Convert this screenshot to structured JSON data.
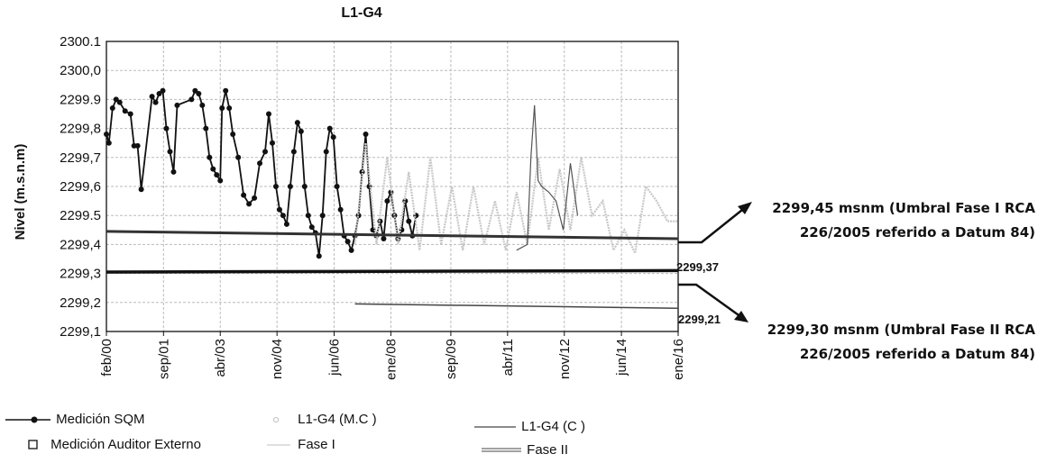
{
  "chart_data": {
    "type": "line",
    "title": "L1-G4",
    "xlabel": "",
    "ylabel": "Nivel (m.s.n.m)",
    "y_tick_labels": [
      "2300.1",
      "2300,0",
      "2299.9",
      "2299,8",
      "2299,7",
      "2299,6",
      "2299.5",
      "2299,4",
      "2299,3",
      "2299,2",
      "2299,1"
    ],
    "y_tick_values": [
      2300.1,
      2300.0,
      2299.9,
      2299.8,
      2299.7,
      2299.6,
      2299.5,
      2299.4,
      2299.3,
      2299.2,
      2299.1
    ],
    "ylim": [
      2299.1,
      2300.1
    ],
    "x_tick_labels": [
      "feb/00",
      "sep/01",
      "abr/03",
      "nov/04",
      "jun/06",
      "ene/08",
      "sep/09",
      "abr/11",
      "nov/12",
      "jun/14",
      "ene/16"
    ],
    "x_tick_values": [
      2000.08,
      2001.67,
      2003.25,
      2004.83,
      2006.42,
      2008.0,
      2009.67,
      2011.25,
      2012.83,
      2014.42,
      2016.0
    ],
    "xlim": [
      2000.08,
      2016.0
    ],
    "grid": true,
    "legend_position": "bottom",
    "series": [
      {
        "name": "Medición SQM",
        "color": "#111111",
        "x": [
          2000.08,
          2000.15,
          2000.25,
          2000.35,
          2000.45,
          2000.6,
          2000.75,
          2000.85,
          2000.95,
          2001.05,
          2001.35,
          2001.45,
          2001.55,
          2001.65,
          2001.75,
          2001.85,
          2001.95,
          2002.05,
          2002.45,
          2002.55,
          2002.65,
          2002.75,
          2002.85,
          2002.95,
          2003.05,
          2003.15,
          2003.25,
          2003.3,
          2003.4,
          2003.5,
          2003.6,
          2003.75,
          2003.9,
          2004.05,
          2004.2,
          2004.35,
          2004.5,
          2004.6,
          2004.7,
          2004.8,
          2004.9,
          2005.0,
          2005.1,
          2005.2,
          2005.3,
          2005.4,
          2005.5,
          2005.6,
          2005.7,
          2005.8,
          2005.9,
          2006.0,
          2006.1,
          2006.2,
          2006.3,
          2006.4,
          2006.5,
          2006.6,
          2006.7,
          2006.8,
          2006.9,
          2007.0,
          2007.1,
          2007.2,
          2007.3,
          2007.4,
          2007.5,
          2007.6,
          2007.7,
          2007.8,
          2007.9,
          2008.0,
          2008.1,
          2008.2,
          2008.3,
          2008.4,
          2008.5,
          2008.6,
          2008.7
        ],
        "y": [
          2299.78,
          2299.75,
          2299.87,
          2299.9,
          2299.89,
          2299.86,
          2299.85,
          2299.74,
          2299.74,
          2299.59,
          2299.91,
          2299.89,
          2299.92,
          2299.93,
          2299.8,
          2299.72,
          2299.65,
          2299.88,
          2299.9,
          2299.93,
          2299.92,
          2299.88,
          2299.8,
          2299.7,
          2299.66,
          2299.64,
          2299.62,
          2299.87,
          2299.93,
          2299.87,
          2299.78,
          2299.7,
          2299.57,
          2299.54,
          2299.56,
          2299.68,
          2299.72,
          2299.85,
          2299.75,
          2299.6,
          2299.52,
          2299.5,
          2299.47,
          2299.6,
          2299.72,
          2299.82,
          2299.79,
          2299.6,
          2299.5,
          2299.46,
          2299.44,
          2299.36,
          2299.5,
          2299.72,
          2299.8,
          2299.77,
          2299.6,
          2299.52,
          2299.43,
          2299.41,
          2299.38,
          2299.43,
          2299.5,
          2299.65,
          2299.78,
          2299.6,
          2299.45,
          2299.43,
          2299.48,
          2299.42,
          2299.55,
          2299.58,
          2299.5,
          2299.42,
          2299.45,
          2299.55,
          2299.48,
          2299.43,
          2299.5
        ]
      },
      {
        "name": "L1-G4 (M.C )",
        "color": "#c8c8c8",
        "x": [
          2007.0,
          2007.3,
          2007.6,
          2007.9,
          2008.2,
          2008.5,
          2008.8,
          2009.1,
          2009.4,
          2009.7,
          2010.0,
          2010.3,
          2010.6,
          2010.9,
          2011.2,
          2011.5,
          2011.8,
          2012.1,
          2012.4,
          2012.7,
          2013.0,
          2013.3,
          2013.6,
          2013.9,
          2014.2,
          2014.5,
          2014.8,
          2015.1,
          2015.4,
          2015.7,
          2016.0
        ],
        "y": [
          2299.4,
          2299.75,
          2299.4,
          2299.7,
          2299.4,
          2299.65,
          2299.38,
          2299.7,
          2299.4,
          2299.6,
          2299.38,
          2299.6,
          2299.4,
          2299.55,
          2299.38,
          2299.58,
          2299.4,
          2299.7,
          2299.45,
          2299.66,
          2299.45,
          2299.7,
          2299.5,
          2299.55,
          2299.38,
          2299.45,
          2299.37,
          2299.6,
          2299.55,
          2299.48,
          2299.48
        ]
      },
      {
        "name": "L1-G4 (C )",
        "color": "#555555",
        "x": [
          2011.5,
          2011.8,
          2011.9,
          2012.0,
          2012.1,
          2012.2,
          2012.4,
          2012.6,
          2012.8,
          2013.0,
          2013.2
        ],
        "y": [
          2299.38,
          2299.4,
          2299.7,
          2299.88,
          2299.62,
          2299.6,
          2299.58,
          2299.55,
          2299.45,
          2299.68,
          2299.5
        ]
      },
      {
        "name": "Fase I",
        "color": "#333333",
        "x": [
          2000.08,
          2016.0
        ],
        "y": [
          2299.445,
          2299.42
        ]
      },
      {
        "name": "Fase II",
        "color": "#444444",
        "x": [
          2007.0,
          2016.0
        ],
        "y": [
          2299.195,
          2299.18
        ]
      },
      {
        "name": "Medición Auditor Externo",
        "color": "#111111",
        "x": [],
        "y": []
      }
    ],
    "threshold_line": {
      "x": [
        2000.08,
        2016.0
      ],
      "y": [
        2299.305,
        2299.31
      ],
      "color": "#111111"
    },
    "annotations": [
      {
        "text": "2299,37",
        "x": 2016.0,
        "y": 2299.37
      },
      {
        "text": "2299,21",
        "x": 2016.0,
        "y": 2299.21
      },
      {
        "line1": "2299,45 msnm (Umbral Fase I RCA",
        "line2": "226/2005 referido a Datum 84)"
      },
      {
        "line1": "2299,30 msnm (Umbral Fase II RCA",
        "line2": "226/2005 referido a Datum 84)"
      }
    ]
  },
  "legend": {
    "sqm": "Medición SQM",
    "auditor": "Medición Auditor Externo",
    "mc": "L1-G4 (M.C )",
    "fase1": "Fase I",
    "c": "L1-G4 (C )",
    "fase2": "Fase II"
  }
}
